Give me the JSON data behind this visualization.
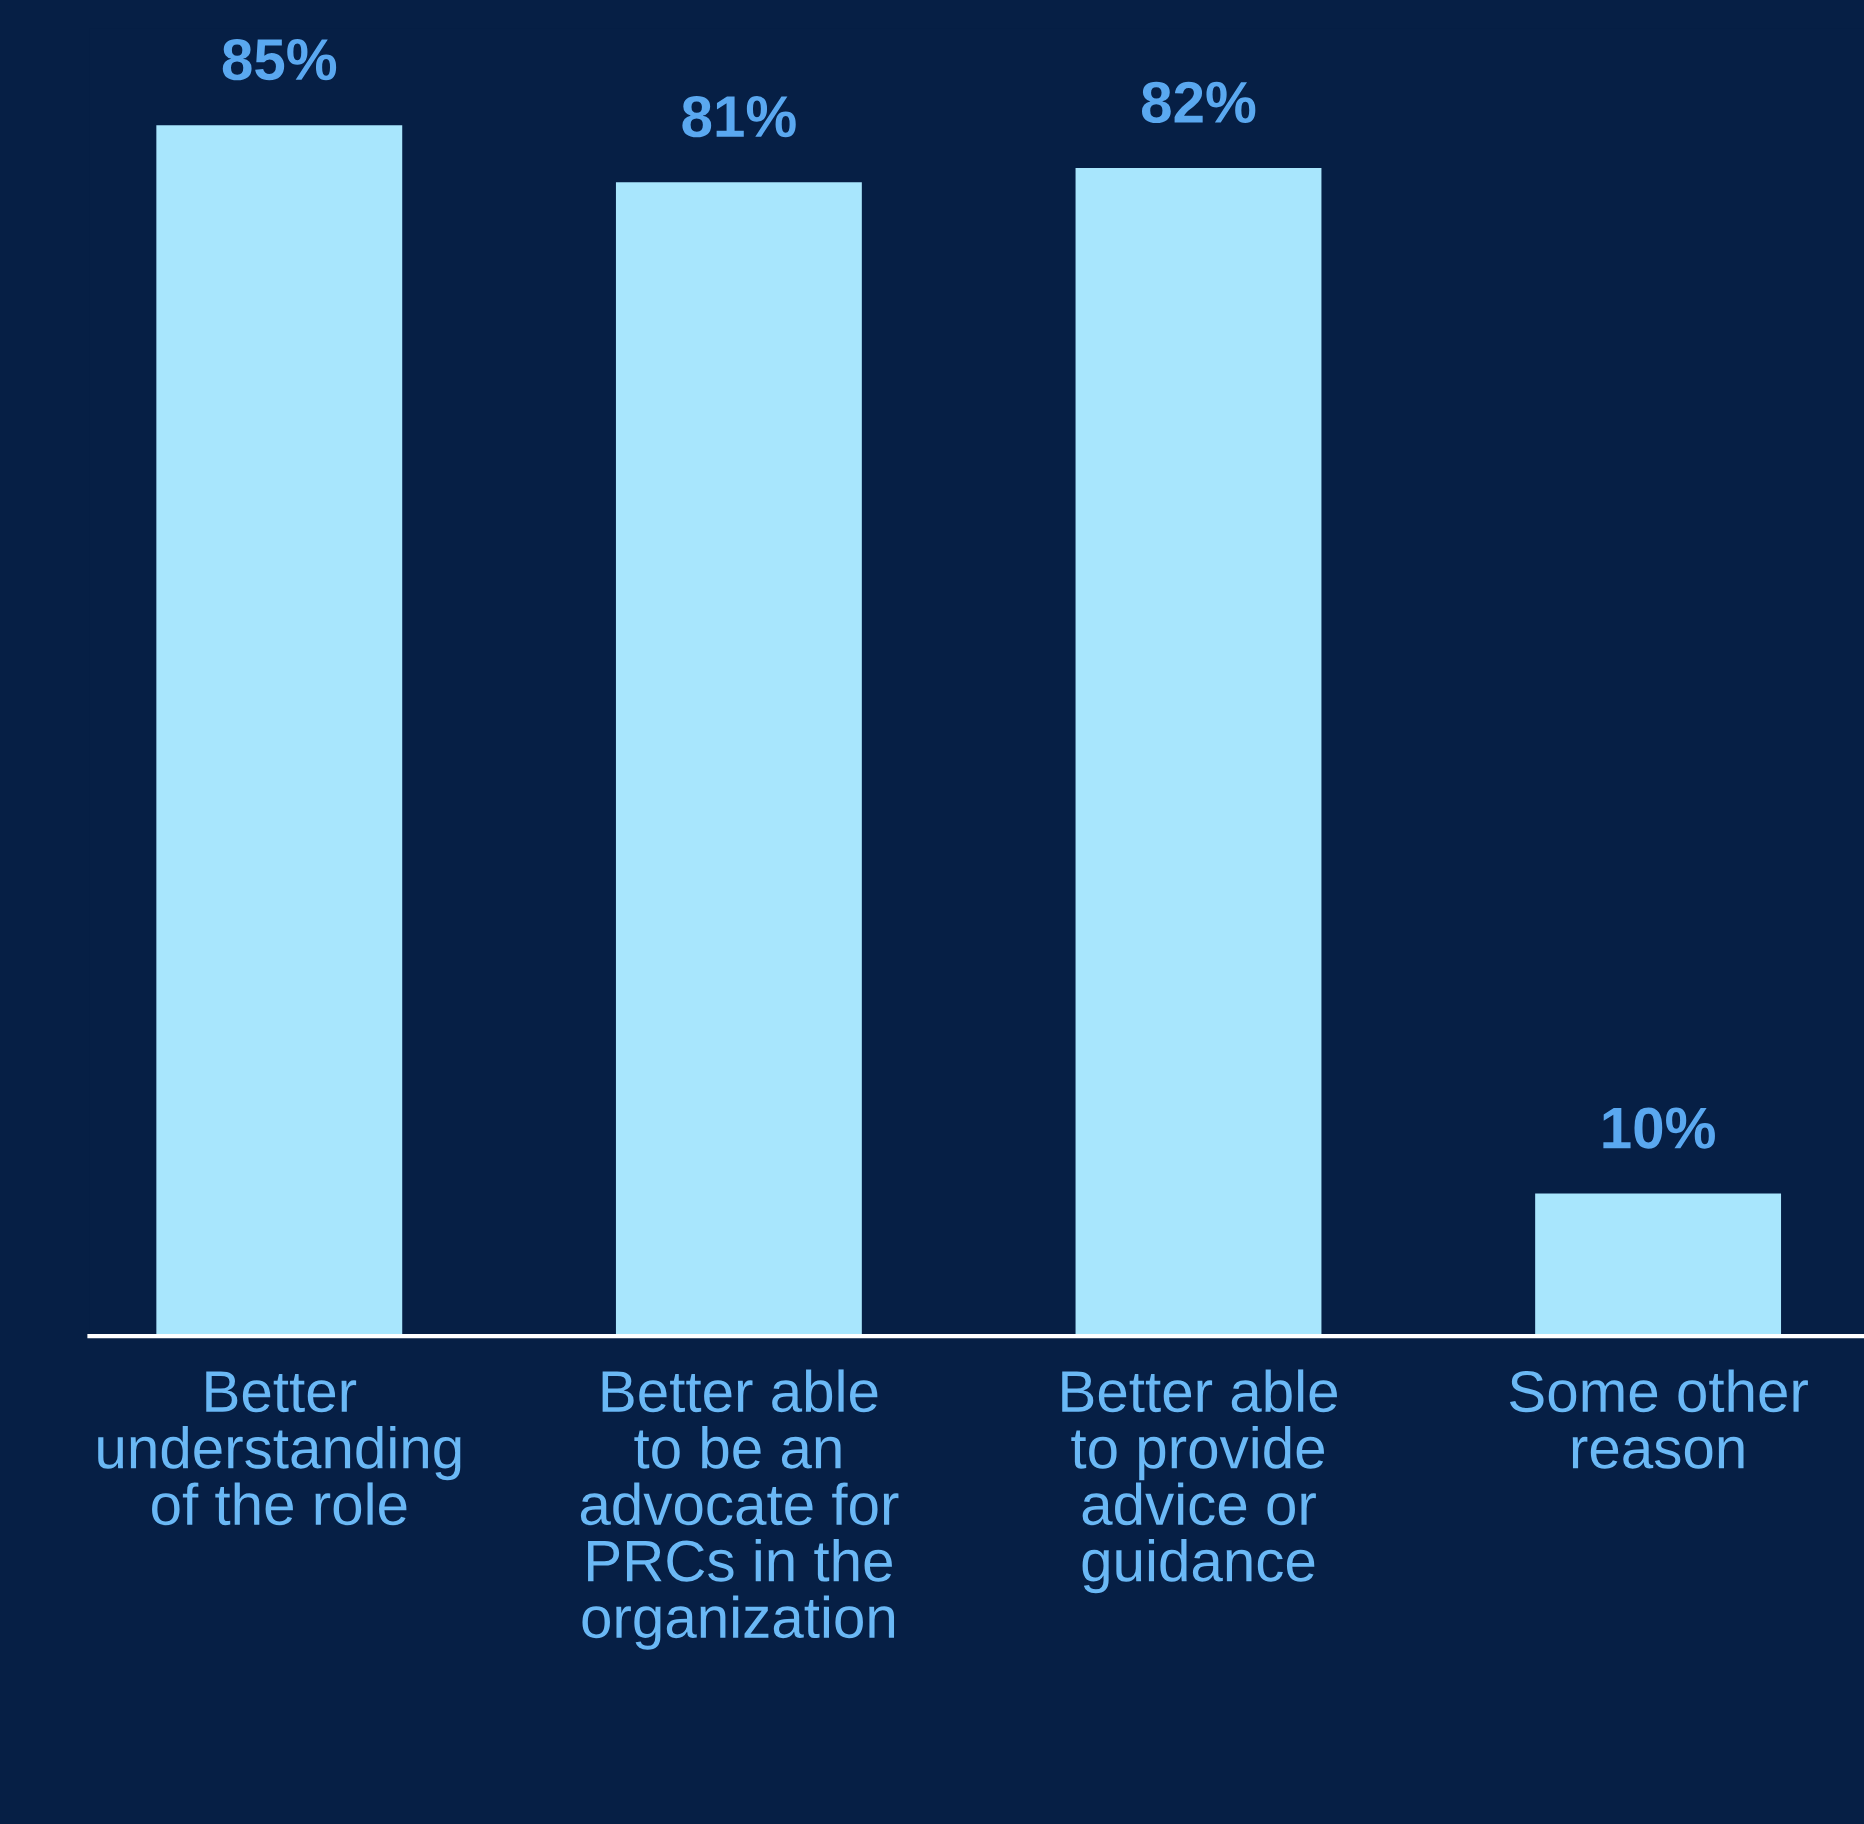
{
  "chart_data": {
    "type": "bar",
    "categories": [
      "Better\nunderstanding\nof the role",
      "Better able\nto be an\nadvocate for\nPRCs in the\norganization",
      "Better able\nto provide\nadvice or\nguidance",
      "Some other\nreason"
    ],
    "values": [
      85,
      81,
      82,
      10
    ],
    "color": "#a8e6fd",
    "data_labels": true,
    "value_labels": [
      "85%",
      "81%",
      "82%",
      "10%"
    ]
  }
}
